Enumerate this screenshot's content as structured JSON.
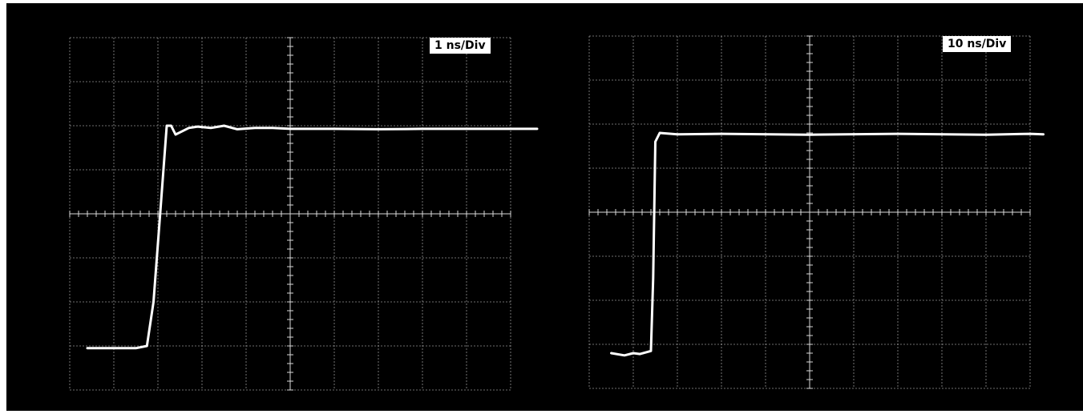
{
  "chart_data": [
    {
      "type": "line",
      "timebase_label": "1 ns/Div",
      "x_unit": "ns",
      "x_divisions": 10,
      "y_divisions": 8,
      "xlim": [
        0,
        10
      ],
      "ylim": [
        -4,
        4
      ],
      "grid": true,
      "background_color": "#000000",
      "trace_color": "#ffffff",
      "series": [
        {
          "x": [
            0.4,
            1.0,
            1.5,
            1.75,
            1.9,
            2.05,
            2.2,
            2.3,
            2.4,
            2.5,
            2.7,
            2.9,
            3.2,
            3.5,
            3.8,
            4.2,
            4.6,
            5.0,
            6.0,
            7.0,
            8.0,
            9.0,
            10.0,
            10.6
          ],
          "y": [
            -3.05,
            -3.05,
            -3.05,
            -3.0,
            -2.0,
            0.0,
            2.0,
            2.0,
            1.8,
            1.85,
            1.95,
            1.98,
            1.95,
            2.0,
            1.92,
            1.95,
            1.95,
            1.93,
            1.93,
            1.92,
            1.93,
            1.93,
            1.93,
            1.93
          ]
        }
      ]
    },
    {
      "type": "line",
      "timebase_label": "10 ns/Div",
      "x_unit": "ns",
      "x_divisions": 10,
      "y_divisions": 8,
      "xlim": [
        0,
        100
      ],
      "ylim": [
        -4,
        4
      ],
      "grid": true,
      "background_color": "#000000",
      "trace_color": "#ffffff",
      "series": [
        {
          "x": [
            5,
            8,
            10,
            11.5,
            14,
            14.5,
            15,
            16,
            20,
            30,
            50,
            70,
            90,
            100,
            103
          ],
          "y": [
            -3.2,
            -3.25,
            -3.2,
            -3.22,
            -3.15,
            -1.5,
            1.6,
            1.8,
            1.77,
            1.78,
            1.76,
            1.78,
            1.76,
            1.78,
            1.77
          ]
        }
      ]
    }
  ]
}
